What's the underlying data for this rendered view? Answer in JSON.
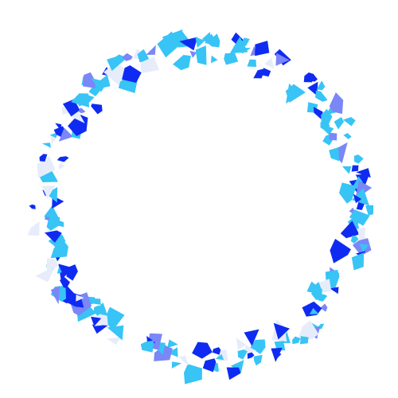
{
  "figure": {
    "shape": "ring",
    "style": "irregular low-poly fragments forming a circle",
    "background": "#ffffff",
    "palette": {
      "sky": "#38c4f5",
      "blue": "#0f2bf2",
      "periwinkle": "#7b86f7",
      "pale": "#e7ecfb"
    }
  }
}
